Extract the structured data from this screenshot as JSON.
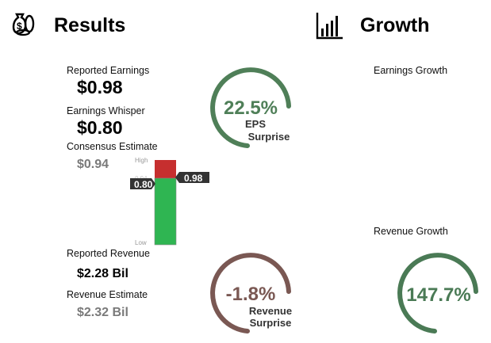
{
  "results": {
    "title": "Results",
    "reported_earnings_label": "Reported Earnings",
    "reported_earnings_value": "$0.98",
    "earnings_whisper_label": "Earnings Whisper",
    "earnings_whisper_value": "$0.80",
    "consensus_label": "Consensus Estimate",
    "consensus_value": "$0.94",
    "reported_revenue_label": "Reported Revenue",
    "reported_revenue_value": "$2.28 Bil",
    "revenue_estimate_label": "Revenue Estimate",
    "revenue_estimate_value": "$2.32 Bil"
  },
  "range_bar": {
    "high_label": "High",
    "low_label": "Low",
    "partial_label": "0.94",
    "whisper_marker": "0.80",
    "reported_marker": "0.98",
    "colors": {
      "beat": "#c62f2f",
      "base": "#2fb552",
      "marker": "#333333"
    }
  },
  "eps_surprise": {
    "value": "22.5%",
    "label_line1": "EPS",
    "label_line2": "Surprise",
    "color": "#4f7f58"
  },
  "revenue_surprise": {
    "value": "-1.8%",
    "label_line1": "Revenue",
    "label_line2": "Surprise",
    "color": "#7a5853"
  },
  "growth": {
    "title": "Growth",
    "earnings_growth_label": "Earnings Growth",
    "revenue_growth_label": "Revenue Growth",
    "revenue_growth_value": "147.7%",
    "color": "#4a7a55"
  },
  "icons": {
    "results": "money-bag-coins-icon",
    "growth": "bar-chart-icon"
  }
}
